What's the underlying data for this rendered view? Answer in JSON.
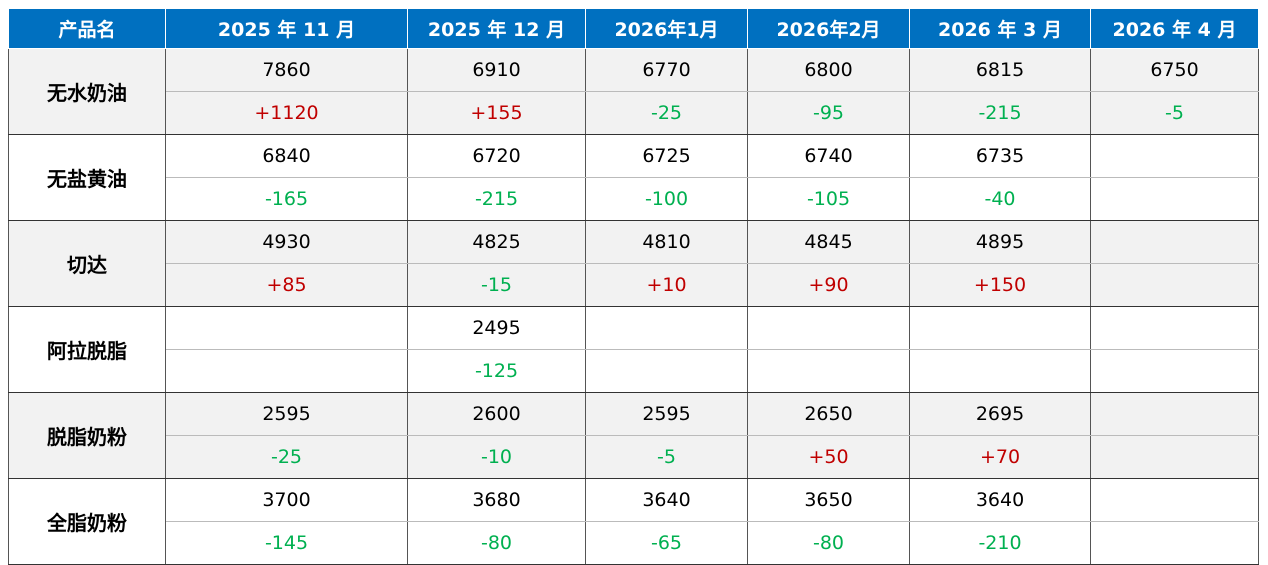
{
  "table": {
    "header": [
      "产品名",
      "2025 年 11 月",
      "2025 年 12 月",
      "2026年1月",
      "2026年2月",
      "2026 年 3 月",
      "2026 年 4 月"
    ],
    "rows": [
      {
        "product": "无水奶油",
        "prices": [
          "7860",
          "6910",
          "6770",
          "6800",
          "6815",
          "6750"
        ],
        "changes": [
          "+1120",
          "+155",
          "-25",
          "-95",
          "-215",
          "-5"
        ]
      },
      {
        "product": "无盐黄油",
        "prices": [
          "6840",
          "6720",
          "6725",
          "6740",
          "6735",
          null
        ],
        "changes": [
          "-165",
          "-215",
          "-100",
          "-105",
          "-40",
          null
        ]
      },
      {
        "product": "切达",
        "prices": [
          "4930",
          "4825",
          "4810",
          "4845",
          "4895",
          null
        ],
        "changes": [
          "+85",
          "-15",
          "+10",
          "+90",
          "+150",
          null
        ]
      },
      {
        "product": "阿拉脱脂",
        "prices": [
          null,
          "2495",
          null,
          null,
          null,
          null
        ],
        "changes": [
          null,
          "-125",
          null,
          null,
          null,
          null
        ]
      },
      {
        "product": "脱脂奶粉",
        "prices": [
          "2595",
          "2600",
          "2595",
          "2650",
          "2695",
          null
        ],
        "changes": [
          "-25",
          "-10",
          "-5",
          "+50",
          "+70",
          null
        ]
      },
      {
        "product": "全脂奶粉",
        "prices": [
          "3700",
          "3680",
          "3640",
          "3650",
          "3640",
          null
        ],
        "changes": [
          "-145",
          "-80",
          "-65",
          "-80",
          "-210",
          null
        ]
      }
    ]
  }
}
